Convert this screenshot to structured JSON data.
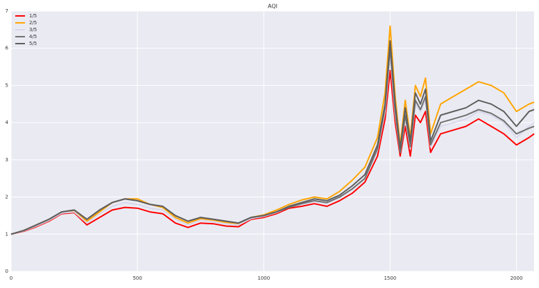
{
  "chart_data": {
    "type": "line",
    "title": "AQI",
    "x": [
      0,
      50,
      100,
      150,
      200,
      250,
      300,
      350,
      400,
      450,
      500,
      550,
      600,
      650,
      700,
      750,
      800,
      850,
      900,
      950,
      1000,
      1050,
      1100,
      1150,
      1200,
      1250,
      1300,
      1350,
      1400,
      1450,
      1480,
      1500,
      1520,
      1540,
      1560,
      1580,
      1600,
      1620,
      1640,
      1660,
      1700,
      1750,
      1800,
      1850,
      1900,
      1950,
      2000,
      2050,
      2070
    ],
    "series": [
      {
        "name": "1/5",
        "color": "#ff0000",
        "values": [
          1.0,
          1.08,
          1.2,
          1.35,
          1.55,
          1.58,
          1.25,
          1.45,
          1.65,
          1.72,
          1.7,
          1.6,
          1.55,
          1.3,
          1.18,
          1.3,
          1.28,
          1.22,
          1.2,
          1.4,
          1.45,
          1.55,
          1.7,
          1.75,
          1.82,
          1.75,
          1.9,
          2.1,
          2.4,
          3.1,
          4.1,
          5.4,
          4.0,
          3.1,
          3.9,
          3.1,
          4.2,
          4.0,
          4.3,
          3.2,
          3.7,
          3.8,
          3.9,
          4.1,
          3.9,
          3.7,
          3.4,
          3.6,
          3.7
        ]
      },
      {
        "name": "2/5",
        "color": "#ffa500",
        "values": [
          1.0,
          1.1,
          1.25,
          1.4,
          1.58,
          1.62,
          1.35,
          1.6,
          1.85,
          1.95,
          1.95,
          1.8,
          1.72,
          1.45,
          1.3,
          1.42,
          1.38,
          1.32,
          1.28,
          1.45,
          1.52,
          1.65,
          1.8,
          1.92,
          2.0,
          1.95,
          2.15,
          2.45,
          2.8,
          3.6,
          4.8,
          6.6,
          4.7,
          3.4,
          4.6,
          3.6,
          5.0,
          4.7,
          5.2,
          3.7,
          4.5,
          4.7,
          4.9,
          5.1,
          5.0,
          4.8,
          4.3,
          4.5,
          4.55
        ]
      },
      {
        "name": "3/5",
        "color": "#d8d8ec",
        "values": [
          1.0,
          1.09,
          1.22,
          1.37,
          1.57,
          1.6,
          1.3,
          1.55,
          1.75,
          1.85,
          1.8,
          1.7,
          1.65,
          1.4,
          1.25,
          1.38,
          1.33,
          1.28,
          1.25,
          1.42,
          1.48,
          1.58,
          1.73,
          1.8,
          1.88,
          1.83,
          1.98,
          2.2,
          2.5,
          3.25,
          4.3,
          5.8,
          4.2,
          3.2,
          4.1,
          3.3,
          4.5,
          4.3,
          4.6,
          3.35,
          3.9,
          4.0,
          4.1,
          4.3,
          4.2,
          4.0,
          3.6,
          3.9,
          4.0
        ]
      },
      {
        "name": "4/5",
        "color": "#707070",
        "values": [
          1.0,
          1.1,
          1.25,
          1.4,
          1.6,
          1.65,
          1.4,
          1.65,
          1.85,
          1.95,
          1.9,
          1.8,
          1.75,
          1.5,
          1.35,
          1.45,
          1.4,
          1.35,
          1.3,
          1.45,
          1.5,
          1.6,
          1.72,
          1.82,
          1.9,
          1.85,
          2.0,
          2.22,
          2.5,
          3.3,
          4.4,
          6.0,
          4.3,
          3.2,
          4.2,
          3.35,
          4.6,
          4.35,
          4.7,
          3.4,
          4.0,
          4.1,
          4.2,
          4.35,
          4.25,
          4.05,
          3.7,
          3.85,
          3.9
        ]
      },
      {
        "name": "5/5",
        "color": "#5e5e5e",
        "values": [
          1.0,
          1.1,
          1.25,
          1.4,
          1.6,
          1.65,
          1.4,
          1.65,
          1.85,
          1.95,
          1.9,
          1.8,
          1.75,
          1.5,
          1.35,
          1.45,
          1.4,
          1.35,
          1.3,
          1.45,
          1.5,
          1.6,
          1.75,
          1.85,
          1.95,
          1.9,
          2.05,
          2.3,
          2.6,
          3.4,
          4.5,
          6.2,
          4.5,
          3.3,
          4.4,
          3.5,
          4.8,
          4.5,
          4.9,
          3.5,
          4.2,
          4.3,
          4.4,
          4.6,
          4.5,
          4.3,
          3.9,
          4.3,
          4.35
        ]
      }
    ],
    "xlim": [
      0,
      2070
    ],
    "ylim": [
      0,
      7
    ],
    "xticks": [
      0,
      500,
      1000,
      1500,
      2000
    ],
    "yticks": [
      0,
      1,
      2,
      3,
      4,
      5,
      6,
      7
    ],
    "grid": true,
    "legend": "upper-left"
  }
}
